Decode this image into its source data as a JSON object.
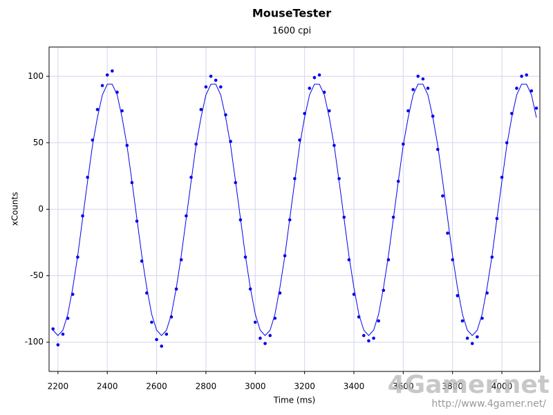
{
  "chart_data": {
    "type": "scatter",
    "title": "MouseTester",
    "subtitle": "1600 cpi",
    "x_label": "Time (ms)",
    "y_label": "xCounts",
    "x": [
      2180,
      2200,
      2220,
      2240,
      2260,
      2280,
      2300,
      2320,
      2340,
      2360,
      2380,
      2400,
      2420,
      2440,
      2460,
      2480,
      2500,
      2520,
      2540,
      2560,
      2580,
      2600,
      2620,
      2640,
      2660,
      2680,
      2700,
      2720,
      2740,
      2760,
      2780,
      2800,
      2820,
      2840,
      2860,
      2880,
      2900,
      2920,
      2940,
      2960,
      2980,
      3000,
      3020,
      3040,
      3060,
      3080,
      3100,
      3120,
      3140,
      3160,
      3180,
      3200,
      3220,
      3240,
      3260,
      3280,
      3300,
      3320,
      3340,
      3360,
      3380,
      3400,
      3420,
      3440,
      3460,
      3480,
      3500,
      3520,
      3540,
      3560,
      3580,
      3600,
      3620,
      3640,
      3660,
      3680,
      3700,
      3720,
      3740,
      3760,
      3780,
      3800,
      3820,
      3840,
      3860,
      3880,
      3900,
      3920,
      3940,
      3960,
      3980,
      4000,
      4020,
      4040,
      4060,
      4080,
      4100,
      4120,
      4140
    ],
    "series": [
      {
        "kind": "points",
        "color": "#0000ee",
        "values": [
          -90,
          -102,
          -94,
          -82,
          -64,
          -36,
          -5,
          24,
          52,
          75,
          93,
          101,
          104,
          88,
          74,
          48,
          20,
          -9,
          -39,
          -63,
          -85,
          -98,
          -103,
          -94,
          -81,
          -60,
          -38,
          -5,
          24,
          49,
          75,
          92,
          100,
          97,
          92,
          71,
          51,
          20,
          -8,
          -36,
          -60,
          -85,
          -97,
          -101,
          -95,
          -82,
          -63,
          -35,
          -8,
          23,
          52,
          72,
          91,
          99,
          101,
          88,
          74,
          48,
          23,
          -6,
          -38,
          -64,
          -81,
          -95,
          -99,
          -97,
          -84,
          -61,
          -38,
          -6,
          21,
          49,
          74,
          90,
          100,
          98,
          91,
          70,
          45,
          10,
          -18,
          -38,
          -65,
          -84,
          -97,
          -101,
          -96,
          -82,
          -63,
          -36,
          -7,
          24,
          50,
          72,
          91,
          100,
          101,
          89,
          76
        ]
      },
      {
        "kind": "line",
        "color": "#0000ee",
        "values": [
          -91,
          -95,
          -91,
          -79,
          -59,
          -35,
          -7,
          21,
          48,
          69,
          86,
          94,
          94,
          86,
          69,
          48,
          21,
          -7,
          -35,
          -59,
          -79,
          -91,
          -95,
          -91,
          -79,
          -59,
          -35,
          -7,
          21,
          48,
          69,
          86,
          94,
          94,
          86,
          69,
          48,
          21,
          -7,
          -35,
          -59,
          -79,
          -91,
          -95,
          -91,
          -79,
          -59,
          -35,
          -7,
          21,
          48,
          69,
          86,
          94,
          94,
          86,
          69,
          48,
          21,
          -7,
          -35,
          -59,
          -79,
          -91,
          -95,
          -91,
          -79,
          -59,
          -35,
          -7,
          21,
          48,
          69,
          86,
          94,
          94,
          86,
          69,
          48,
          21,
          -7,
          -35,
          -59,
          -79,
          -91,
          -95,
          -91,
          -79,
          -59,
          -35,
          -7,
          21,
          48,
          69,
          86,
          94,
          94,
          86,
          69
        ]
      }
    ],
    "xlim": [
      2164,
      4154
    ],
    "ylim": [
      -122,
      122
    ],
    "xticks": [
      2200,
      2400,
      2600,
      2800,
      3000,
      3200,
      3400,
      3600,
      3800,
      4000
    ],
    "yticks": [
      -100,
      -50,
      0,
      50,
      100
    ],
    "grid": true
  },
  "watermark": {
    "logo": "4Gamer.net",
    "url": "http://www.4gamer.net/"
  }
}
